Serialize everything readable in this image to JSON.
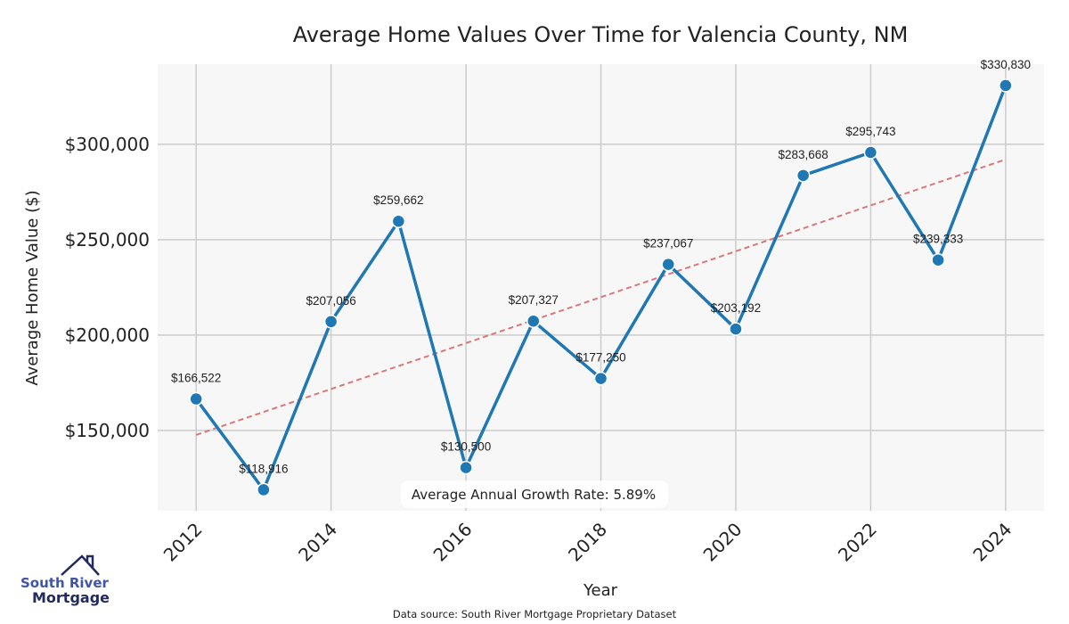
{
  "chart_data": {
    "type": "line",
    "title": "Average Home Values Over Time for Valencia County, NM",
    "xlabel": "Year",
    "ylabel": "Average Home Value ($)",
    "x": [
      2012,
      2013,
      2014,
      2015,
      2016,
      2017,
      2018,
      2019,
      2020,
      2021,
      2022,
      2023,
      2024
    ],
    "values": [
      166522,
      118916,
      207056,
      259662,
      130500,
      207327,
      177250,
      237067,
      203192,
      283668,
      295743,
      239333,
      330830
    ],
    "data_labels": [
      "$166,522",
      "$118,916",
      "$207,056",
      "$259,662",
      "$130,500",
      "$207,327",
      "$177,250",
      "$237,067",
      "$203,192",
      "$283,668",
      "$295,743",
      "$239,333",
      "$330,830"
    ],
    "xticks": [
      "2012",
      "2014",
      "2016",
      "2018",
      "2020",
      "2022",
      "2024"
    ],
    "xtick_values": [
      2012,
      2014,
      2016,
      2018,
      2020,
      2022,
      2024
    ],
    "yticks": [
      "$150,000",
      "$200,000",
      "$250,000",
      "$300,000"
    ],
    "ytick_values": [
      150000,
      200000,
      250000,
      300000
    ],
    "xlim": [
      2011.43,
      2024.57
    ],
    "ylim": [
      107900,
      342000
    ],
    "grid": true,
    "trend": {
      "name": "Linear trend",
      "start": [
        2012,
        147660
      ],
      "end": [
        2024,
        292060
      ],
      "color": "#d9787a",
      "style": "dashed"
    },
    "annotation": "Average Annual Growth Rate: 5.89%",
    "series_color": "#1f77b4",
    "source": "Data source: South River Mortgage Proprietary Dataset"
  },
  "logo": {
    "line1": "South River",
    "line2": "Mortgage"
  }
}
